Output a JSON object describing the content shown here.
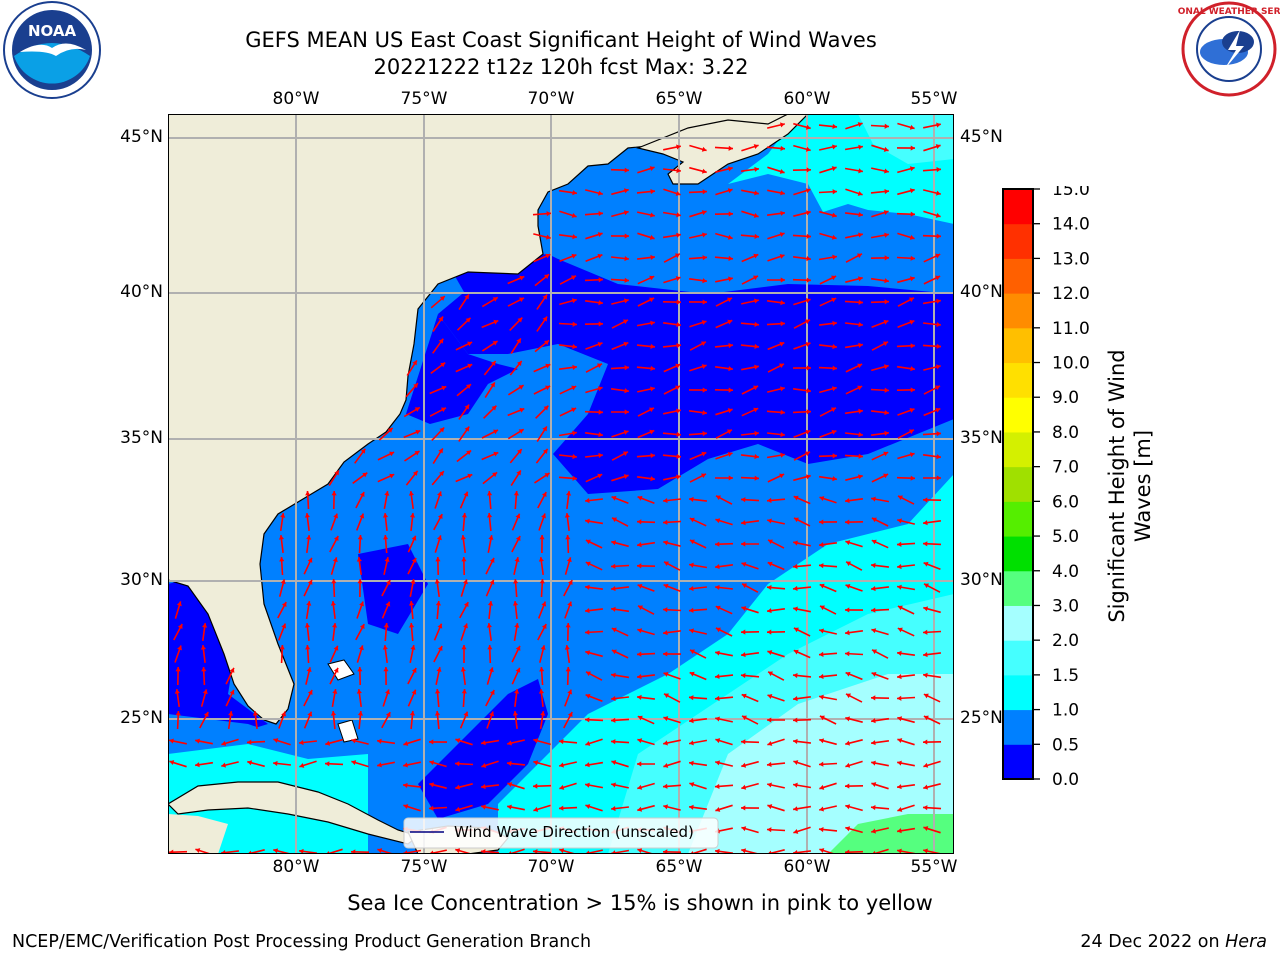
{
  "title": {
    "line1": "GEFS MEAN US East Coast Significant Height of Wind Waves",
    "line2": "20221222 t12z 120h fcst   Max: 3.22"
  },
  "map": {
    "lon_labels": [
      "80°W",
      "75°W",
      "70°W",
      "65°W",
      "60°W",
      "55°W"
    ],
    "lat_labels": [
      "45°N",
      "40°N",
      "35°N",
      "30°N",
      "25°N"
    ],
    "legend_label": "Wind Wave Direction (unscaled)",
    "arrow_color": "#ff0000",
    "land_color": "#efedd9",
    "grid_color": "#b0b0b0"
  },
  "colorbar": {
    "title": "Significant Height of Wind Waves [m]",
    "title_line1": "Significant Height of Wind",
    "title_line2": "Waves [m]",
    "tick_labels": [
      "0.0",
      "0.5",
      "1.0",
      "1.5",
      "2.0",
      "3.0",
      "4.0",
      "5.0",
      "6.0",
      "7.0",
      "8.0",
      "9.0",
      "10.0",
      "11.0",
      "12.0",
      "13.0",
      "14.0",
      "15.0"
    ],
    "colors": [
      "#0000ff",
      "#0080ff",
      "#00ffff",
      "#45ffff",
      "#a5ffff",
      "#55ff7f",
      "#00e000",
      "#55ee00",
      "#a0e000",
      "#d4f000",
      "#ffff00",
      "#ffe000",
      "#ffbf00",
      "#ff8c00",
      "#ff6000",
      "#ff3000",
      "#ff0000"
    ]
  },
  "subtitle": "Sea Ice Concentration > 15% is shown in pink to yellow",
  "footer": {
    "left": "NCEP/EMC/Verification Post Processing Product Generation Branch",
    "date": "24 Dec 2022 on ",
    "machine": "Hera"
  },
  "logos": {
    "noaa_text": "NOAA",
    "nws_text": "NATIONAL WEATHER SERVICE"
  }
}
